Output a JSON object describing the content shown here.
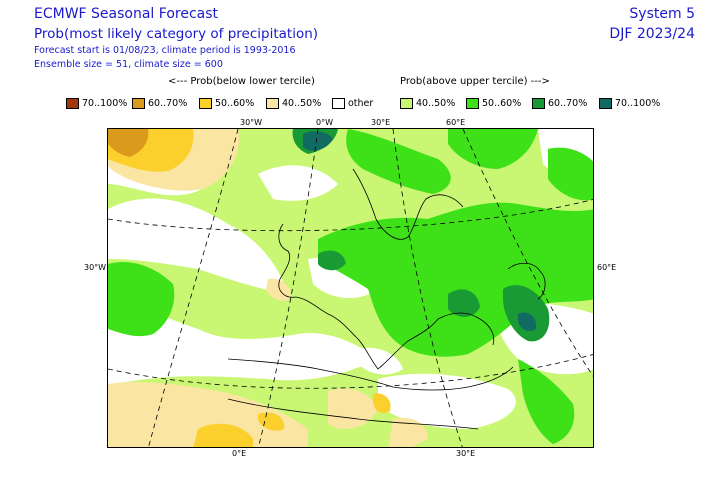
{
  "header": {
    "title": "ECMWF Seasonal Forecast",
    "subtitle": "Prob(most likely category of precipitation)",
    "line1": "Forecast start is 01/08/23, climate period is 1993-2016",
    "line2": "Ensemble size = 51, climate size = 600",
    "system": "System 5",
    "season": "DJF 2023/24"
  },
  "legend": {
    "below_header": "<--- Prob(below lower tercile)",
    "above_header": "Prob(above upper tercile) --->",
    "items": [
      {
        "label": "70..100%",
        "color": "#a0380c"
      },
      {
        "label": "60..70%",
        "color": "#d99a1d"
      },
      {
        "label": "50..60%",
        "color": "#fbcf2c"
      },
      {
        "label": "40..50%",
        "color": "#fbe5a2"
      },
      {
        "label": "other",
        "color": "#ffffff"
      },
      {
        "label": "40..50%",
        "color": "#c9f774"
      },
      {
        "label": "50..60%",
        "color": "#3ee117"
      },
      {
        "label": "60..70%",
        "color": "#1a9a34"
      },
      {
        "label": "70..100%",
        "color": "#126b62"
      }
    ]
  },
  "map": {
    "lon_labels_top": [
      "30°W",
      "0°W",
      "30°E",
      "60°E"
    ],
    "lon_labels_bottom": [
      "0°E",
      "30°E"
    ],
    "lat_label_left": "30°W",
    "lat_label_right": "60°E"
  }
}
